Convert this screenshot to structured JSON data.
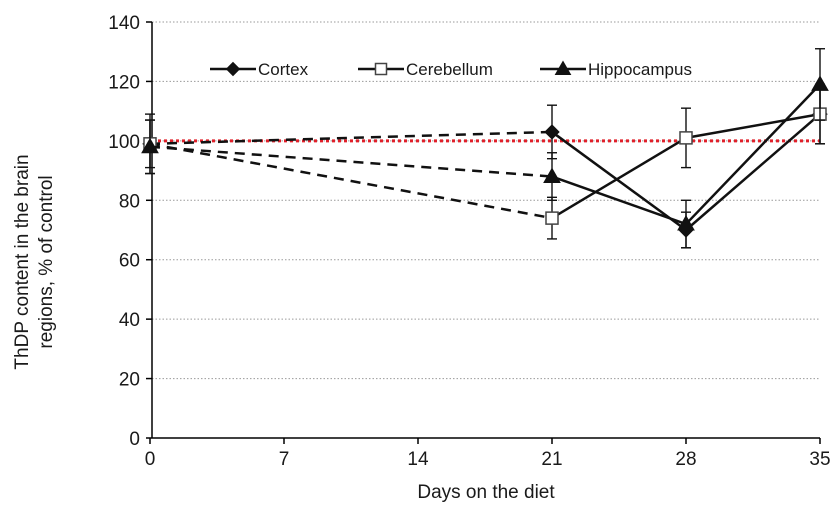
{
  "chart_data": {
    "type": "line",
    "xlabel": "Days on the diet",
    "ylabel_lines": [
      "ThDP content in the brain",
      "regions, % of control"
    ],
    "xlim": [
      0,
      35
    ],
    "ylim": [
      0,
      140
    ],
    "x_ticks": [
      0,
      7,
      14,
      21,
      28,
      35
    ],
    "y_ticks": [
      0,
      20,
      40,
      60,
      80,
      100,
      120,
      140
    ],
    "grid": "horizontal dotted",
    "legend_position": "top, inside plot",
    "reference_line": {
      "y": 100,
      "color": "#e0202a",
      "style": "dotted"
    },
    "series": [
      {
        "name": "Cortex",
        "marker": "diamond",
        "x": [
          0,
          21,
          28,
          35
        ],
        "y": [
          99,
          103,
          70,
          109
        ],
        "err": [
          10,
          9,
          6,
          10
        ],
        "dashed_until_index": 1
      },
      {
        "name": "Cerebellum",
        "marker": "square-open",
        "x": [
          0,
          21,
          28,
          35
        ],
        "y": [
          99,
          74,
          101,
          109
        ],
        "err": [
          8,
          7,
          10,
          10
        ],
        "dashed_until_index": 1
      },
      {
        "name": "Hippocampus",
        "marker": "triangle",
        "x": [
          0,
          21,
          28,
          35
        ],
        "y": [
          98,
          88,
          72,
          119
        ],
        "err": [
          9,
          8,
          8,
          12
        ],
        "dashed_until_index": 1
      }
    ]
  }
}
